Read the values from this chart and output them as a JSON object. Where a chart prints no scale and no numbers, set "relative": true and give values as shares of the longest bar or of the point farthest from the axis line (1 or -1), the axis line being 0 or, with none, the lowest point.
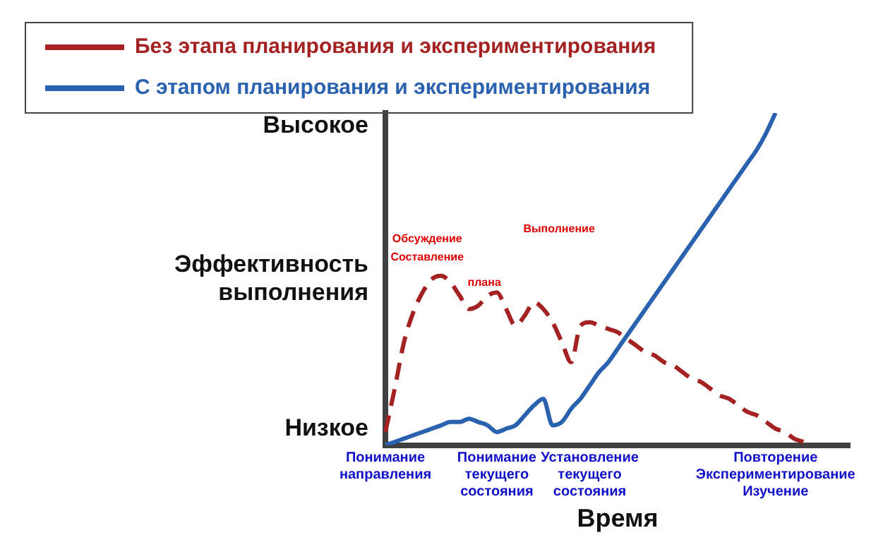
{
  "chart_data": {
    "type": "line",
    "relative": true,
    "xlabel": "Время",
    "ylabel": "Эффективность выполнения",
    "categories": [
      "Понимание направления",
      null,
      null,
      null,
      null,
      null,
      null,
      null,
      null,
      null,
      null,
      null,
      "Понимание текущего состояния",
      null,
      null,
      null,
      null,
      null,
      null,
      null,
      null,
      null,
      "Установление текущего состояния",
      null,
      null,
      null,
      null,
      null,
      null,
      null,
      null,
      null,
      null,
      null,
      null,
      null,
      null,
      null,
      null,
      null,
      null,
      null,
      "Повторение Экспериментирование Изучение",
      null,
      null,
      null,
      null,
      null,
      null,
      null,
      null
    ],
    "series": [
      {
        "name": "Без этапа планирования и экспериментирования",
        "color": "#a52222",
        "line_style": "dashed",
        "values": [
          0.04,
          0.17,
          0.31,
          0.4,
          0.46,
          0.5,
          0.51,
          0.49,
          0.45,
          0.41,
          0.42,
          0.45,
          0.46,
          0.41,
          0.36,
          0.39,
          0.43,
          0.41,
          0.37,
          0.31,
          0.25,
          0.36,
          0.37,
          0.36,
          0.35,
          0.34,
          0.32,
          0.3,
          0.28,
          0.27,
          0.25,
          0.24,
          0.22,
          0.2,
          0.19,
          0.17,
          0.15,
          0.14,
          0.12,
          0.1,
          0.09,
          0.07,
          0.05,
          0.04,
          0.02,
          0.01,
          null,
          null,
          null,
          null,
          null
        ]
      },
      {
        "name": "С этапом планирования и экспериментирования",
        "color": "#2a62b0",
        "line_style": "solid",
        "values": [
          0,
          0.01,
          0.02,
          0.03,
          0.04,
          0.05,
          0.06,
          0.07,
          0.07,
          0.08,
          0.07,
          0.06,
          0.04,
          0.05,
          0.06,
          0.09,
          0.12,
          0.14,
          0.06,
          0.07,
          0.11,
          0.14,
          0.18,
          0.22,
          0.25,
          0.29,
          0.33,
          0.37,
          0.41,
          0.45,
          0.49,
          0.53,
          0.57,
          0.61,
          0.65,
          0.69,
          0.73,
          0.77,
          0.81,
          0.85,
          0.89,
          0.94,
          1,
          null,
          null,
          null,
          null,
          null,
          null,
          null,
          null
        ]
      }
    ],
    "annotations": [
      "Высокое",
      "Низкое",
      "Обсуждение",
      "Составление",
      "плана",
      "Выполнение"
    ],
    "legend": "top left",
    "grid": false,
    "marker": "none"
  }
}
